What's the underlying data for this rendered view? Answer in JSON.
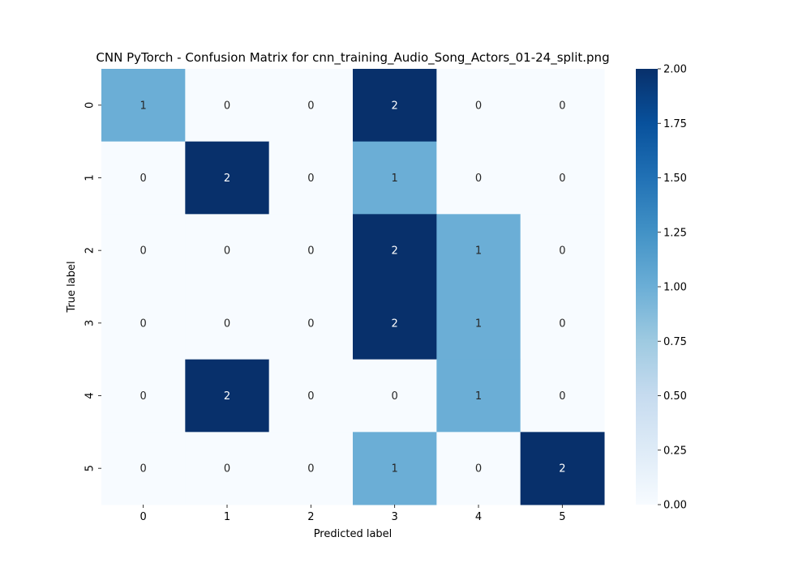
{
  "chart_data": {
    "type": "heatmap",
    "title": "CNN PyTorch - Confusion Matrix for cnn_training_Audio_Song_Actors_01-24_split.png",
    "xlabel": "Predicted label",
    "ylabel": "True label",
    "x_categories": [
      "0",
      "1",
      "2",
      "3",
      "4",
      "5"
    ],
    "y_categories": [
      "0",
      "1",
      "2",
      "3",
      "4",
      "5"
    ],
    "values": [
      [
        1,
        0,
        0,
        2,
        0,
        0
      ],
      [
        0,
        2,
        0,
        1,
        0,
        0
      ],
      [
        0,
        0,
        0,
        2,
        1,
        0
      ],
      [
        0,
        0,
        0,
        2,
        1,
        0
      ],
      [
        0,
        2,
        0,
        0,
        1,
        0
      ],
      [
        0,
        0,
        0,
        1,
        0,
        2
      ]
    ],
    "colorbar": {
      "min": 0,
      "max": 2,
      "ticks": [
        "0.00",
        "0.25",
        "0.50",
        "0.75",
        "1.00",
        "1.25",
        "1.50",
        "1.75",
        "2.00"
      ],
      "colormap": [
        "#f7fbff",
        "#deebf7",
        "#c6dbef",
        "#9ecae1",
        "#6baed6",
        "#4292c6",
        "#2171b5",
        "#08519c",
        "#08306b"
      ]
    },
    "colors": {
      "annotation_dark": "#262626",
      "annotation_light": "#ffffff"
    }
  }
}
